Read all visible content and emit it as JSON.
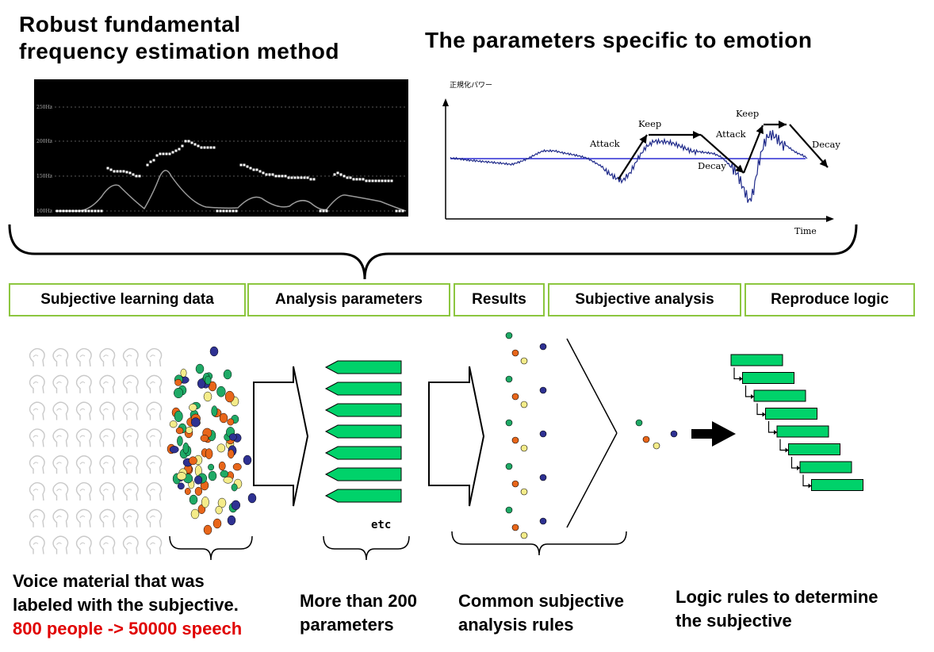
{
  "titles": {
    "left": [
      "Robust fundamental",
      "frequency estimation method"
    ],
    "right": "The parameters specific to  emotion"
  },
  "pitch_panel": {
    "tick_labels": [
      "250Hz",
      "200Hz",
      "150Hz",
      "100Hz"
    ]
  },
  "emotion_chart": {
    "ylabel": "正規化パワー",
    "xlabel": "Time",
    "annotations": [
      "Attack",
      "Keep",
      "Decay",
      "Attack",
      "Keep",
      "Decay"
    ]
  },
  "headers": [
    "Subjective learning data",
    "Analysis parameters",
    "Results",
    "Subjective analysis",
    "Reproduce logic"
  ],
  "etc_label": "etc",
  "captions": {
    "voice": [
      "Voice material that was",
      "labeled with the subjective."
    ],
    "voice_highlight": "800 people -> 50000 speech",
    "params": [
      "More than 200",
      "parameters"
    ],
    "rules": [
      "Common subjective",
      "analysis rules"
    ],
    "logic": [
      "Logic rules to determine",
      "the subjective"
    ]
  },
  "colors": {
    "header_border": "#8cc63f",
    "green_fill": "#00d26a",
    "dot_orange": "#e8661a",
    "dot_green": "#1faa66",
    "dot_yellow": "#f4ec8a",
    "dot_navy": "#2e3192",
    "highlight_red": "#e00000"
  }
}
